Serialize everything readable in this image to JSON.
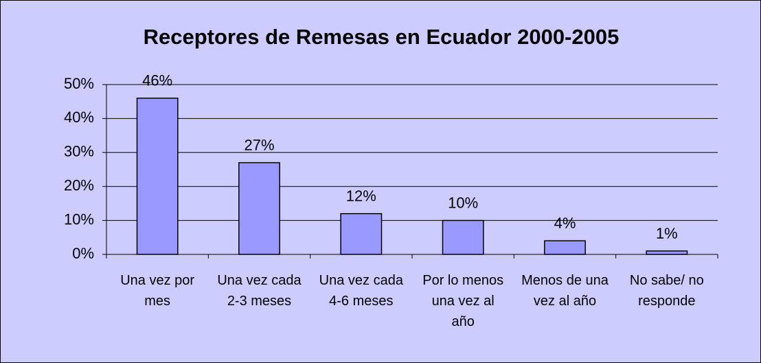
{
  "chart_data": {
    "type": "bar",
    "title": "Receptores de Remesas en Ecuador 2000-2005",
    "categories": [
      "Una vez por mes",
      "Una vez cada 2-3 meses",
      "Una vez cada 4-6 meses",
      "Por lo menos una vez al año",
      "Menos de una vez al año",
      "No sabe/ no responde"
    ],
    "values": [
      46,
      27,
      12,
      10,
      4,
      1
    ],
    "value_labels": [
      "46%",
      "27%",
      "12%",
      "10%",
      "4%",
      "1%"
    ],
    "color": "#9999ff",
    "ylim": [
      0,
      50
    ],
    "yticks": [
      {
        "value": 0,
        "label": "0%"
      },
      {
        "value": 10,
        "label": "10%"
      },
      {
        "value": 20,
        "label": "20%"
      },
      {
        "value": 30,
        "label": "30%"
      },
      {
        "value": 40,
        "label": "40%"
      },
      {
        "value": 50,
        "label": "50%"
      }
    ],
    "grid": true
  }
}
